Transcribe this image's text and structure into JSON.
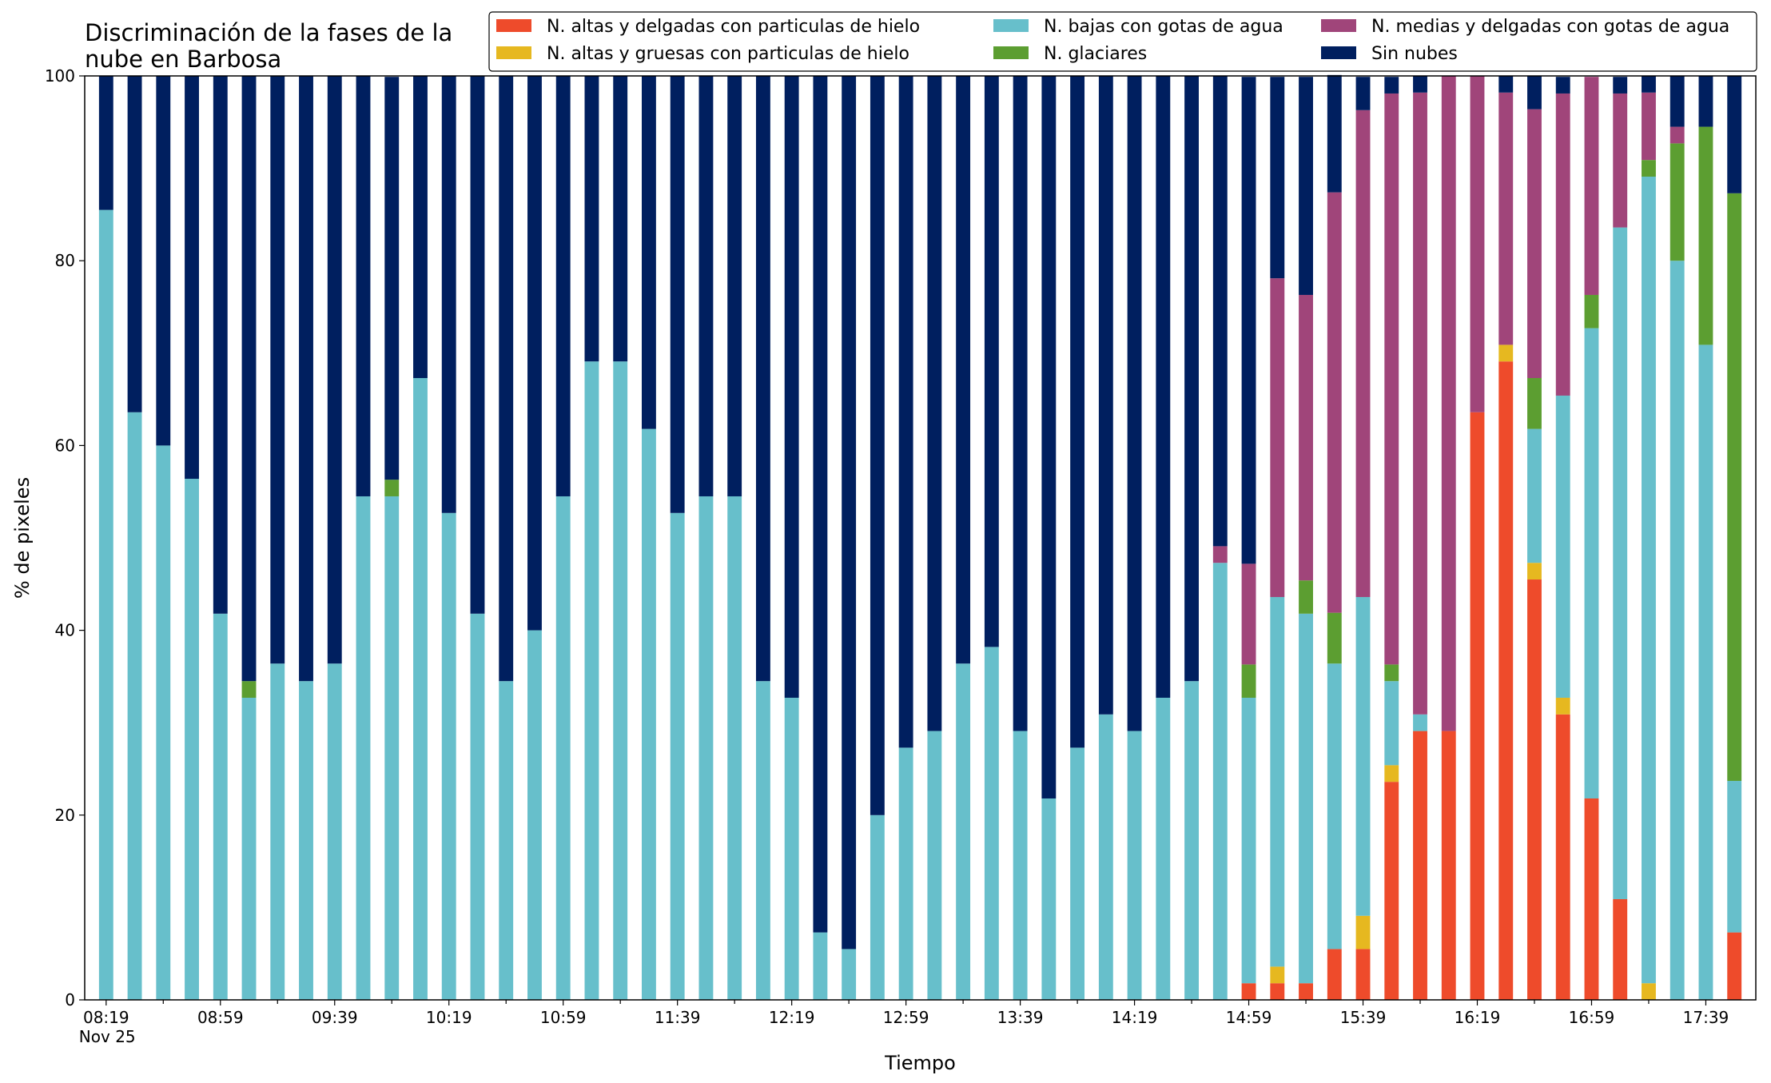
{
  "chart_data": {
    "type": "bar",
    "stacked": true,
    "title_lines": [
      "Discriminación de la fases de la",
      "nube en Barbosa"
    ],
    "xlabel": "Tiempo",
    "ylabel": "% de pixeles",
    "ylim": [
      0,
      100
    ],
    "yticks": [
      0,
      20,
      40,
      60,
      80,
      100
    ],
    "x_tick_labels": [
      "08:19",
      "08:59",
      "09:39",
      "10:19",
      "10:59",
      "11:39",
      "12:19",
      "12:59",
      "13:39",
      "14:19",
      "14:59",
      "15:39",
      "16:19",
      "16:59",
      "17:39"
    ],
    "x_date_label": "Nov 25",
    "grid": false,
    "legend_position": "top-right",
    "categories": [
      "08:19",
      "08:29",
      "08:39",
      "08:49",
      "08:59",
      "09:09",
      "09:19",
      "09:29",
      "09:39",
      "09:49",
      "09:59",
      "10:09",
      "10:19",
      "10:29",
      "10:39",
      "10:49",
      "10:59",
      "11:09",
      "11:19",
      "11:29",
      "11:39",
      "11:49",
      "11:59",
      "12:09",
      "12:19",
      "12:29",
      "12:39",
      "12:49",
      "12:59",
      "13:09",
      "13:19",
      "13:29",
      "13:39",
      "13:49",
      "13:59",
      "14:09",
      "14:19",
      "14:29",
      "14:39",
      "14:49",
      "14:59",
      "15:09",
      "15:19",
      "15:29",
      "15:39",
      "15:49",
      "15:59",
      "16:09",
      "16:19",
      "16:29",
      "16:39",
      "16:49",
      "16:59",
      "17:09",
      "17:19",
      "17:29",
      "17:39",
      "17:49"
    ],
    "series": [
      {
        "name": "N. altas y delgadas con particulas de hielo",
        "color": "#ee4b2b",
        "values": [
          0,
          0,
          0,
          0,
          0,
          0,
          0,
          0,
          0,
          0,
          0,
          0,
          0,
          0,
          0,
          0,
          0,
          0,
          0,
          0,
          0,
          0,
          0,
          0,
          0,
          0,
          0,
          0,
          0,
          0,
          0,
          0,
          0,
          0,
          0,
          0,
          0,
          0,
          0,
          0,
          1.8,
          1.8,
          1.8,
          5.5,
          5.5,
          23.6,
          29.1,
          29.1,
          63.6,
          69.1,
          45.5,
          30.9,
          21.8,
          10.9,
          0,
          0,
          0,
          7.3
        ]
      },
      {
        "name": "N. altas y gruesas con particulas de hielo",
        "color": "#e6b820",
        "values": [
          0,
          0,
          0,
          0,
          0,
          0,
          0,
          0,
          0,
          0,
          0,
          0,
          0,
          0,
          0,
          0,
          0,
          0,
          0,
          0,
          0,
          0,
          0,
          0,
          0,
          0,
          0,
          0,
          0,
          0,
          0,
          0,
          0,
          0,
          0,
          0,
          0,
          0,
          0,
          0,
          0,
          1.8,
          0,
          0,
          3.6,
          1.8,
          0,
          0,
          0,
          1.8,
          1.8,
          1.8,
          0,
          0,
          1.8,
          0,
          0,
          0
        ]
      },
      {
        "name": "N. bajas con gotas de agua",
        "color": "#67bfcb",
        "values": [
          85.5,
          63.6,
          60.0,
          56.4,
          41.8,
          32.7,
          36.4,
          34.5,
          36.4,
          54.5,
          54.5,
          67.3,
          52.7,
          41.8,
          34.5,
          40.0,
          54.5,
          69.1,
          69.1,
          61.8,
          52.7,
          54.5,
          54.5,
          34.5,
          32.7,
          7.3,
          5.5,
          20.0,
          27.3,
          29.1,
          36.4,
          38.2,
          29.1,
          21.8,
          27.3,
          30.9,
          29.1,
          32.7,
          34.5,
          47.3,
          30.9,
          40.0,
          40.0,
          30.9,
          34.5,
          9.1,
          1.8,
          0,
          0,
          0,
          14.5,
          32.7,
          50.9,
          72.7,
          87.3,
          80.0,
          70.9,
          16.4
        ]
      },
      {
        "name": "N. glaciares",
        "color": "#5c9e31",
        "values": [
          0,
          0,
          0,
          0,
          0,
          1.8,
          0,
          0,
          0,
          0,
          1.8,
          0,
          0,
          0,
          0,
          0,
          0,
          0,
          0,
          0,
          0,
          0,
          0,
          0,
          0,
          0,
          0,
          0,
          0,
          0,
          0,
          0,
          0,
          0,
          0,
          0,
          0,
          0,
          0,
          0,
          3.6,
          0,
          3.6,
          5.5,
          0,
          1.8,
          0,
          0,
          0,
          0,
          5.5,
          0,
          3.6,
          0,
          1.8,
          12.7,
          23.6,
          63.6
        ]
      },
      {
        "name": "N. medias y delgadas con gotas de agua",
        "color": "#a0457a",
        "values": [
          0,
          0,
          0,
          0,
          0,
          0,
          0,
          0,
          0,
          0,
          0,
          0,
          0,
          0,
          0,
          0,
          0,
          0,
          0,
          0,
          0,
          0,
          0,
          0,
          0,
          0,
          0,
          0,
          0,
          0,
          0,
          0,
          0,
          0,
          0,
          0,
          0,
          0,
          0,
          1.8,
          10.9,
          34.5,
          30.9,
          45.5,
          52.7,
          61.8,
          67.3,
          70.9,
          36.4,
          27.3,
          29.1,
          32.7,
          23.6,
          14.5,
          7.3,
          1.8,
          0,
          0
        ]
      },
      {
        "name": "Sin nubes",
        "color": "#001f5f",
        "values": [
          14.5,
          36.4,
          40.0,
          43.6,
          58.2,
          65.5,
          63.6,
          65.5,
          63.6,
          45.5,
          43.6,
          32.7,
          47.3,
          58.2,
          65.5,
          60.0,
          45.5,
          30.9,
          30.9,
          38.2,
          47.3,
          45.5,
          45.5,
          65.5,
          67.3,
          92.7,
          94.5,
          80.0,
          72.7,
          70.9,
          63.6,
          61.8,
          70.9,
          78.2,
          72.7,
          69.1,
          70.9,
          67.3,
          65.5,
          50.9,
          52.7,
          21.8,
          23.6,
          12.7,
          3.6,
          1.8,
          1.8,
          0,
          0,
          1.8,
          3.6,
          1.8,
          0,
          1.8,
          1.8,
          5.5,
          5.5,
          12.7
        ]
      }
    ]
  }
}
